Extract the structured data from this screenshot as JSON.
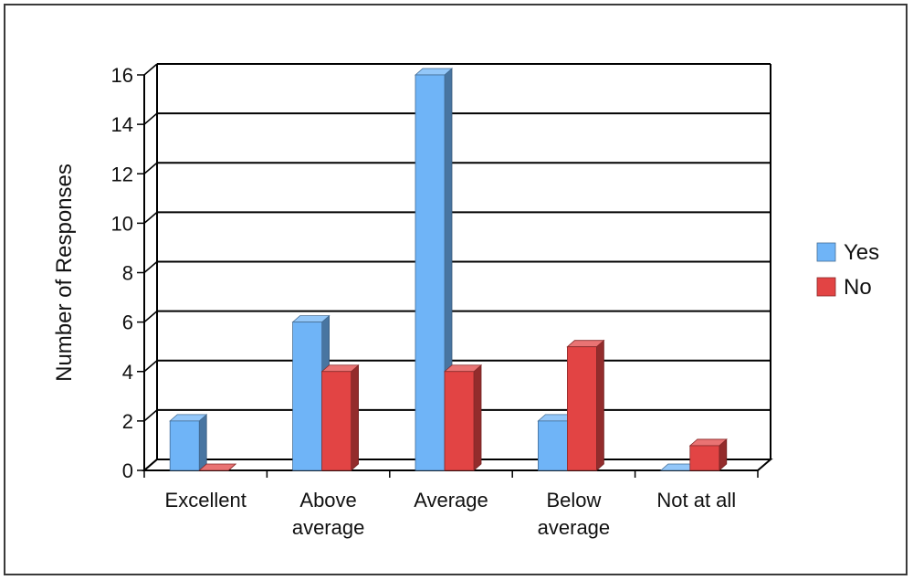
{
  "chart_data": {
    "type": "bar",
    "title": "",
    "xlabel": "",
    "ylabel": "Number of Responses",
    "categories": [
      "Excellent",
      "Above average",
      "Average",
      "Below average",
      "Not at all"
    ],
    "category_lines": [
      [
        "Excellent"
      ],
      [
        "Above",
        "average"
      ],
      [
        "Average"
      ],
      [
        "Below",
        "average"
      ],
      [
        "Not at all"
      ]
    ],
    "yticks": [
      0,
      2,
      4,
      6,
      8,
      10,
      12,
      14,
      16
    ],
    "ylim": [
      0,
      16
    ],
    "grid": true,
    "legend_position": "right",
    "series": [
      {
        "name": "Yes",
        "color": "#6fb4f7",
        "values": [
          2,
          6,
          16,
          2,
          0
        ]
      },
      {
        "name": "No",
        "color": "#e24444",
        "values": [
          0,
          4,
          4,
          5,
          1
        ]
      }
    ]
  }
}
